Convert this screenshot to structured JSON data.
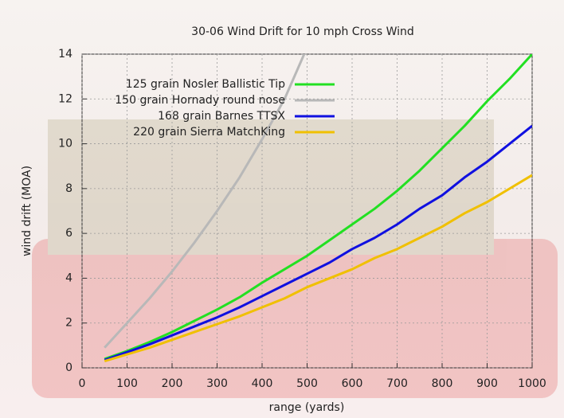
{
  "chart_data": {
    "type": "line",
    "title": "30-06 Wind Drift for 10 mph Cross Wind",
    "x_label": "range (yards)",
    "y_label": "wind drift (MOA)",
    "x": [
      50,
      100,
      150,
      200,
      250,
      300,
      350,
      400,
      450,
      500,
      550,
      600,
      650,
      700,
      750,
      800,
      850,
      900,
      950,
      1000
    ],
    "series": [
      {
        "name": "125 grain Nosler Ballistic Tip",
        "color": "#22e022",
        "values": [
          0.4,
          0.75,
          1.15,
          1.6,
          2.1,
          2.6,
          3.15,
          3.8,
          4.4,
          5.0,
          5.7,
          6.4,
          7.1,
          7.9,
          8.8,
          9.8,
          10.8,
          11.9,
          12.9,
          14.0
        ]
      },
      {
        "name": "150 grain Hornady round nose",
        "color": "#b8b8b8",
        "values": [
          0.9,
          2.0,
          3.1,
          4.3,
          5.6,
          7.0,
          8.5,
          10.2,
          12.0,
          14.3,
          null,
          null,
          null,
          null,
          null,
          null,
          null,
          null,
          null,
          null
        ]
      },
      {
        "name": "168 grain Barnes TTSX",
        "color": "#1010e0",
        "values": [
          0.35,
          0.7,
          1.05,
          1.45,
          1.85,
          2.25,
          2.7,
          3.2,
          3.7,
          4.2,
          4.7,
          5.3,
          5.8,
          6.4,
          7.1,
          7.7,
          8.5,
          9.2,
          10.0,
          10.8
        ]
      },
      {
        "name": "220 grain Sierra MatchKing",
        "color": "#f0c000",
        "values": [
          0.3,
          0.6,
          0.9,
          1.25,
          1.6,
          1.95,
          2.3,
          2.7,
          3.1,
          3.6,
          4.0,
          4.4,
          4.9,
          5.3,
          5.8,
          6.3,
          6.9,
          7.4,
          8.0,
          8.6
        ]
      }
    ],
    "xlim": [
      0,
      1000
    ],
    "xticks": [
      0,
      100,
      200,
      300,
      400,
      500,
      600,
      700,
      800,
      900,
      1000
    ],
    "ylim": [
      0,
      14
    ],
    "yticks": [
      0,
      2,
      4,
      6,
      8,
      10,
      12,
      14
    ],
    "grid": true,
    "legend": "top-left"
  }
}
